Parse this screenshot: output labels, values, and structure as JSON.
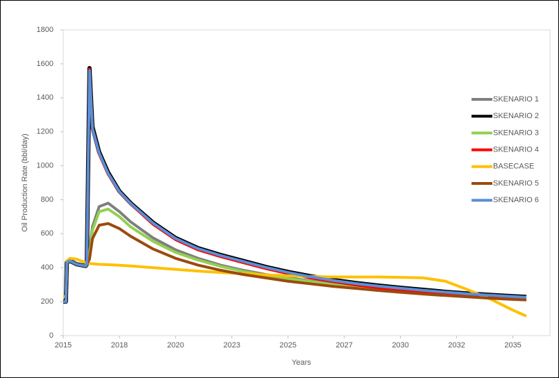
{
  "chart_data": {
    "type": "line",
    "xlabel": "Years",
    "ylabel": "Oil Production Rate (bbl/day)",
    "x": [
      2015,
      2015.12,
      2015.16,
      2015.3,
      2015.6,
      2016,
      2016.05,
      2016.17,
      2016.3,
      2016.6,
      2017,
      2017.5,
      2018,
      2019,
      2020,
      2021,
      2022,
      2023,
      2024,
      2025,
      2026,
      2027,
      2028,
      2029,
      2030,
      2031,
      2032,
      2033,
      2034,
      2035,
      2035.6
    ],
    "xlim": [
      2015,
      2036.65
    ],
    "xticks": [
      {
        "value": 2015,
        "label": "2015"
      },
      {
        "value": 2017.5,
        "label": "2018"
      },
      {
        "value": 2020,
        "label": "2020"
      },
      {
        "value": 2022.5,
        "label": "2023"
      },
      {
        "value": 2025,
        "label": "2025"
      },
      {
        "value": 2027.5,
        "label": "2027"
      },
      {
        "value": 2030,
        "label": "2030"
      },
      {
        "value": 2032.5,
        "label": "2032"
      },
      {
        "value": 2035,
        "label": "2035"
      }
    ],
    "ylim": [
      0,
      1800
    ],
    "yticks": [
      0,
      200,
      400,
      600,
      800,
      1000,
      1200,
      1400,
      1600,
      1800
    ],
    "legend": "right",
    "series": [
      {
        "name": "SKENARIO 1",
        "color": "#7f7f7f",
        "values": [
          200,
          200,
          430,
          440,
          420,
          410,
          420,
          500,
          640,
          760,
          780,
          730,
          670,
          575,
          505,
          455,
          415,
          385,
          360,
          340,
          322,
          305,
          290,
          277,
          265,
          255,
          245,
          237,
          230,
          223,
          220
        ]
      },
      {
        "name": "SKENARIO 2",
        "color": "#000000",
        "values": [
          200,
          200,
          430,
          440,
          420,
          410,
          420,
          1575,
          1230,
          1080,
          960,
          850,
          780,
          665,
          575,
          515,
          475,
          440,
          405,
          375,
          350,
          328,
          310,
          295,
          282,
          270,
          258,
          248,
          240,
          232,
          228
        ]
      },
      {
        "name": "SKENARIO 3",
        "color": "#92d050",
        "values": [
          200,
          200,
          430,
          440,
          420,
          410,
          420,
          480,
          620,
          730,
          745,
          700,
          640,
          555,
          490,
          445,
          408,
          378,
          355,
          335,
          318,
          300,
          285,
          272,
          260,
          250,
          240,
          232,
          225,
          218,
          215
        ]
      },
      {
        "name": "SKENARIO 4",
        "color": "#ff0000",
        "values": [
          200,
          200,
          430,
          440,
          420,
          410,
          420,
          1570,
          1220,
          1070,
          950,
          845,
          775,
          655,
          565,
          505,
          465,
          430,
          395,
          365,
          340,
          318,
          298,
          282,
          268,
          256,
          245,
          235,
          225,
          215,
          210
        ]
      },
      {
        "name": "BASECASE",
        "color": "#ffc000",
        "values": [
          230,
          230,
          440,
          455,
          450,
          430,
          428,
          425,
          423,
          420,
          418,
          414,
          410,
          400,
          390,
          380,
          372,
          365,
          358,
          352,
          348,
          345,
          345,
          345,
          343,
          340,
          320,
          270,
          215,
          150,
          115
        ]
      },
      {
        "name": "SKENARIO 5",
        "color": "#9c4a0e",
        "values": [
          200,
          200,
          430,
          440,
          420,
          410,
          420,
          450,
          570,
          650,
          660,
          630,
          585,
          510,
          455,
          415,
          385,
          360,
          340,
          320,
          305,
          290,
          278,
          266,
          255,
          245,
          236,
          228,
          220,
          213,
          210
        ]
      },
      {
        "name": "SKENARIO 6",
        "color": "#5b8fd6",
        "values": [
          200,
          200,
          430,
          440,
          420,
          410,
          420,
          1560,
          1220,
          1075,
          955,
          848,
          778,
          662,
          572,
          512,
          472,
          437,
          402,
          372,
          347,
          325,
          307,
          292,
          279,
          267,
          256,
          246,
          238,
          230,
          226
        ]
      }
    ]
  }
}
